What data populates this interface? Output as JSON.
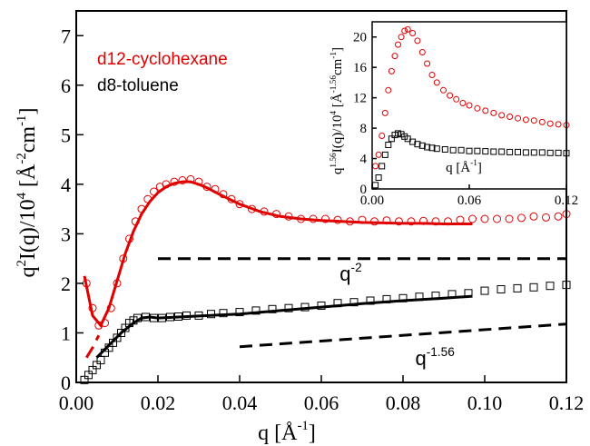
{
  "chart_data": [
    {
      "type": "scatter",
      "panel": "main",
      "title": "",
      "xlabel": {
        "base": "q [Å",
        "sup": "-1",
        "tail": "]"
      },
      "ylabel": {
        "p1": "q",
        "s1": "2",
        "p2": "I(q)/10",
        "s2": "4",
        "p3": " [Å",
        "s3": "-2",
        "p4": "cm",
        "s4": "-1",
        "p5": "]"
      },
      "xlim": [
        0.0,
        0.12
      ],
      "ylim": [
        0,
        7.5
      ],
      "xticks": [
        0.0,
        0.02,
        0.04,
        0.06,
        0.08,
        0.1,
        0.12
      ],
      "xtick_labels": [
        "0.00",
        "0.02",
        "0.04",
        "0.06",
        "0.08",
        "0.10",
        "0.12"
      ],
      "yticks": [
        0,
        1,
        2,
        3,
        4,
        5,
        6,
        7
      ],
      "ytick_labels": [
        "0",
        "1",
        "2",
        "3",
        "4",
        "5",
        "6",
        "7"
      ],
      "legend": {
        "placement": "top-left",
        "entries": [
          {
            "label": "d12-cyclohexane",
            "color": "#e00000"
          },
          {
            "label": "d8-toluene",
            "color": "#000000"
          }
        ]
      },
      "series": [
        {
          "name": "d12-cyclohexane",
          "marker": "circle",
          "color": "#e00000",
          "x": [
            0.0025,
            0.004,
            0.0055,
            0.007,
            0.0085,
            0.01,
            0.0115,
            0.013,
            0.0145,
            0.016,
            0.0175,
            0.019,
            0.0205,
            0.022,
            0.024,
            0.026,
            0.028,
            0.03,
            0.032,
            0.034,
            0.036,
            0.038,
            0.04,
            0.043,
            0.046,
            0.049,
            0.052,
            0.055,
            0.058,
            0.061,
            0.064,
            0.067,
            0.07,
            0.073,
            0.076,
            0.079,
            0.082,
            0.085,
            0.088,
            0.091,
            0.094,
            0.097,
            0.1,
            0.103,
            0.106,
            0.109,
            0.112,
            0.115,
            0.118,
            0.12
          ],
          "y": [
            2.0,
            1.5,
            1.15,
            1.2,
            1.5,
            2.0,
            2.5,
            2.9,
            3.25,
            3.5,
            3.7,
            3.85,
            3.95,
            4.0,
            4.05,
            4.08,
            4.1,
            4.05,
            3.95,
            3.9,
            3.8,
            3.7,
            3.6,
            3.5,
            3.45,
            3.4,
            3.35,
            3.3,
            3.3,
            3.3,
            3.28,
            3.25,
            3.28,
            3.25,
            3.27,
            3.25,
            3.25,
            3.26,
            3.25,
            3.25,
            3.28,
            3.3,
            3.3,
            3.3,
            3.3,
            3.32,
            3.35,
            3.33,
            3.35,
            3.4
          ]
        },
        {
          "name": "d8-toluene",
          "marker": "square",
          "color": "#000000",
          "x": [
            0.002,
            0.003,
            0.004,
            0.005,
            0.006,
            0.007,
            0.008,
            0.009,
            0.01,
            0.011,
            0.012,
            0.013,
            0.014,
            0.015,
            0.017,
            0.019,
            0.021,
            0.023,
            0.025,
            0.027,
            0.03,
            0.033,
            0.036,
            0.04,
            0.044,
            0.048,
            0.052,
            0.056,
            0.06,
            0.064,
            0.068,
            0.072,
            0.076,
            0.08,
            0.084,
            0.088,
            0.092,
            0.096,
            0.1,
            0.104,
            0.108,
            0.112,
            0.116,
            0.12
          ],
          "y": [
            0.05,
            0.15,
            0.25,
            0.35,
            0.45,
            0.6,
            0.7,
            0.8,
            0.9,
            1.0,
            1.1,
            1.2,
            1.25,
            1.3,
            1.32,
            1.3,
            1.3,
            1.32,
            1.33,
            1.35,
            1.35,
            1.38,
            1.4,
            1.42,
            1.45,
            1.48,
            1.5,
            1.52,
            1.55,
            1.6,
            1.62,
            1.65,
            1.68,
            1.7,
            1.73,
            1.75,
            1.78,
            1.8,
            1.85,
            1.88,
            1.9,
            1.92,
            1.95,
            1.97
          ]
        },
        {
          "name": "",
          "type": "line",
          "color": "#e00000",
          "x": [
            0.002,
            0.004,
            0.006,
            0.008,
            0.01,
            0.012,
            0.014,
            0.016,
            0.018,
            0.02,
            0.022,
            0.024,
            0.026,
            0.028,
            0.03,
            0.032,
            0.035,
            0.04,
            0.045,
            0.05,
            0.055,
            0.06,
            0.065,
            0.07,
            0.075,
            0.08,
            0.085,
            0.09,
            0.097
          ],
          "y": [
            2.15,
            1.35,
            1.15,
            1.5,
            2.05,
            2.6,
            3.05,
            3.4,
            3.65,
            3.83,
            3.95,
            4.02,
            4.05,
            4.05,
            4.0,
            3.93,
            3.8,
            3.6,
            3.45,
            3.35,
            3.3,
            3.27,
            3.25,
            3.23,
            3.22,
            3.21,
            3.21,
            3.2,
            3.2
          ]
        },
        {
          "name": "",
          "type": "line",
          "color": "#000000",
          "x": [
            0.005,
            0.008,
            0.011,
            0.014,
            0.016,
            0.018,
            0.02,
            0.025,
            0.03,
            0.04,
            0.05,
            0.06,
            0.07,
            0.08,
            0.09,
            0.097
          ],
          "y": [
            0.5,
            0.75,
            1.0,
            1.2,
            1.3,
            1.32,
            1.3,
            1.32,
            1.34,
            1.38,
            1.45,
            1.52,
            1.59,
            1.65,
            1.7,
            1.74
          ]
        },
        {
          "name": "",
          "type": "dashed",
          "color": "#e00000",
          "x": [
            0.0025,
            0.004,
            0.0055
          ],
          "y": [
            0.5,
            0.7,
            0.95
          ]
        },
        {
          "name": "",
          "type": "dashed",
          "color": "#000000",
          "x": [
            0.02,
            0.12
          ],
          "y": [
            2.5,
            2.5
          ]
        },
        {
          "name": "",
          "type": "dashed",
          "color": "#000000",
          "x": [
            0.04,
            0.12
          ],
          "y": [
            0.72,
            1.18
          ]
        }
      ],
      "annotations": [
        {
          "base": "q",
          "sup": "-2",
          "x": 0.0645,
          "y": 2.05
        },
        {
          "base": "q",
          "sup": "-1.56",
          "x": 0.083,
          "y": 0.35
        }
      ]
    },
    {
      "type": "scatter",
      "panel": "inset",
      "title": "",
      "xlabel": {
        "base": "q [Å",
        "sup": "-1",
        "tail": "]"
      },
      "ylabel": {
        "p1": "q",
        "s1": "1.56",
        "p2": "I(q)/10",
        "s2": "4",
        "p3": " [Å",
        "s3": "-1.56",
        "p4": "cm",
        "s4": "-1",
        "p5": "]"
      },
      "xlim": [
        0.0,
        0.12
      ],
      "ylim": [
        0,
        22
      ],
      "xticks": [
        0.0,
        0.06,
        0.12
      ],
      "xtick_labels": [
        "0.00",
        "0.06",
        "0.12"
      ],
      "yticks": [
        0,
        4,
        8,
        12,
        16,
        20
      ],
      "ytick_labels": [
        "0",
        "4",
        "8",
        "12",
        "16",
        "20"
      ],
      "series": [
        {
          "name": "d12-cyclohexane",
          "marker": "circle",
          "color": "#e00000",
          "x": [
            0.002,
            0.004,
            0.006,
            0.008,
            0.01,
            0.012,
            0.014,
            0.016,
            0.018,
            0.02,
            0.022,
            0.025,
            0.028,
            0.031,
            0.034,
            0.037,
            0.04,
            0.044,
            0.048,
            0.052,
            0.056,
            0.06,
            0.065,
            0.07,
            0.075,
            0.08,
            0.085,
            0.09,
            0.095,
            0.1,
            0.105,
            0.11,
            0.115,
            0.12
          ],
          "y": [
            3.0,
            4.5,
            7.0,
            10.0,
            13.0,
            15.5,
            17.5,
            19.0,
            20.0,
            20.8,
            21.0,
            20.5,
            19.5,
            18.0,
            16.5,
            15.0,
            14.0,
            13.0,
            12.3,
            11.8,
            11.3,
            11.0,
            10.6,
            10.3,
            10.0,
            9.7,
            9.5,
            9.3,
            9.1,
            9.0,
            8.8,
            8.6,
            8.5,
            8.4
          ]
        },
        {
          "name": "d8-toluene",
          "marker": "square",
          "color": "#000000",
          "x": [
            0.002,
            0.004,
            0.006,
            0.008,
            0.01,
            0.012,
            0.014,
            0.016,
            0.018,
            0.02,
            0.022,
            0.025,
            0.028,
            0.031,
            0.034,
            0.037,
            0.04,
            0.045,
            0.05,
            0.055,
            0.06,
            0.065,
            0.07,
            0.075,
            0.08,
            0.085,
            0.09,
            0.095,
            0.1,
            0.105,
            0.11,
            0.115,
            0.12
          ],
          "y": [
            0.5,
            1.5,
            3.0,
            4.5,
            5.8,
            6.6,
            7.1,
            7.3,
            7.2,
            6.9,
            6.6,
            6.2,
            5.9,
            5.7,
            5.5,
            5.4,
            5.3,
            5.2,
            5.1,
            5.1,
            5.0,
            5.0,
            4.95,
            4.9,
            4.9,
            4.85,
            4.85,
            4.8,
            4.8,
            4.8,
            4.75,
            4.75,
            4.7
          ]
        }
      ]
    }
  ]
}
